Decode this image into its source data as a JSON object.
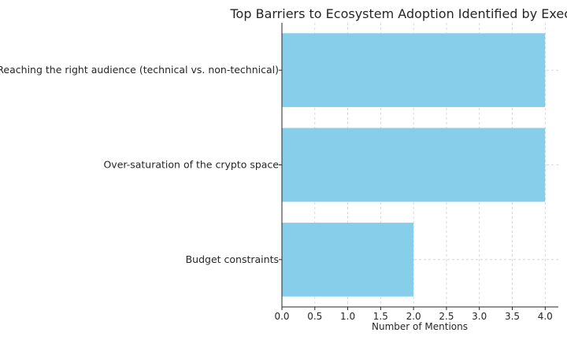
{
  "chart_data": {
    "type": "bar",
    "orientation": "horizontal",
    "title": "Top Barriers to Ecosystem Adoption Identified by Executives",
    "xlabel": "Number of Mentions",
    "ylabel": "",
    "categories": [
      "Reaching the right audience (technical vs. non-technical)",
      "Over-saturation of the crypto space",
      "Budget constraints"
    ],
    "values": [
      4,
      4,
      2
    ],
    "xlim": [
      0,
      4.2
    ],
    "xticks": [
      "0.0",
      "0.5",
      "1.0",
      "1.5",
      "2.0",
      "2.5",
      "3.0",
      "3.5",
      "4.0"
    ],
    "grid": true,
    "bar_color": "#87CEEB"
  }
}
